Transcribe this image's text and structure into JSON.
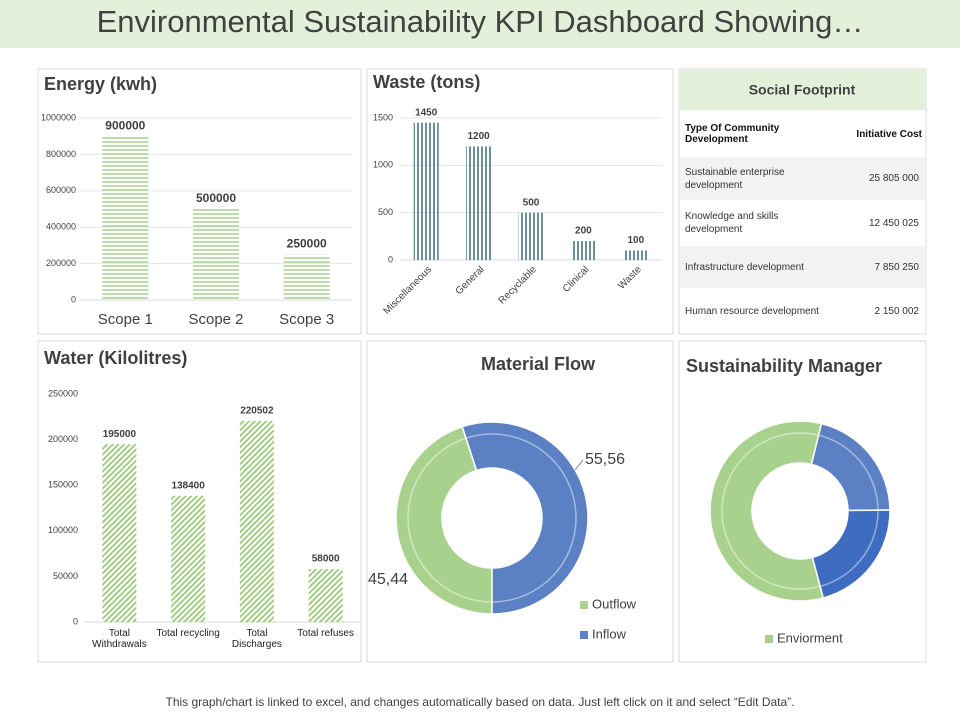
{
  "title": "Environmental Sustainability KPI Dashboard Showing…",
  "chart_data": [
    {
      "type": "bar",
      "title": "Energy (kwh)",
      "categories": [
        "Scope 1",
        "Scope 2",
        "Scope 3"
      ],
      "values": [
        900000,
        500000,
        250000
      ],
      "color": "#a9d18e",
      "pattern": "horizontal",
      "ylim": [
        0,
        1000000
      ],
      "yticks": [
        0,
        200000,
        400000,
        600000,
        800000,
        1000000
      ],
      "grid": true
    },
    {
      "type": "bar",
      "title": "Waste (tons)",
      "categories": [
        "Miscellaneous",
        "General",
        "Recyclable",
        "Clinical",
        "Waste"
      ],
      "values": [
        1450,
        1200,
        500,
        200,
        100
      ],
      "color": "#44747f",
      "pattern": "vertical",
      "ylim": [
        0,
        1600
      ],
      "yticks": [
        0,
        500,
        1000,
        1500
      ],
      "grid": true
    },
    {
      "type": "bar",
      "title": "Water (Kilolitres)",
      "categories": [
        "Total Withdrawals",
        "Total recycling",
        "Total Discharges",
        "Total refuses"
      ],
      "values": [
        195000,
        138400,
        220502,
        58000
      ],
      "color": "#8fc26a",
      "pattern": "diagonal",
      "ylim": [
        0,
        250000
      ],
      "yticks": [
        0,
        50000,
        100000,
        150000,
        200000,
        250000
      ],
      "grid": false
    },
    {
      "type": "donut",
      "title": "Material Flow",
      "categories": [
        "Outflow",
        "Inflow"
      ],
      "values": [
        45.44,
        55.56
      ],
      "value_labels": [
        "45,44",
        "55,56"
      ],
      "colors": [
        "#a9d18e",
        "#5b80c4"
      ]
    },
    {
      "type": "donut",
      "title": "Sustainability Manager",
      "categories": [
        "Enviorment",
        null,
        null
      ],
      "values": [
        58,
        21,
        21
      ],
      "colors": [
        "#a9d18e",
        "#5b80c4",
        "#3d6cc0"
      ]
    }
  ],
  "social_footprint": {
    "title": "Social Footprint",
    "columns": [
      "Type Of Community Development",
      "Initiative Cost"
    ],
    "rows": [
      [
        "Sustainable enterprise development",
        "25 805 000"
      ],
      [
        "Knowledge and skills development",
        "12 450 025"
      ],
      [
        "Infrastructure development",
        "7 850 250"
      ],
      [
        "Human resource development",
        "2 150 002"
      ]
    ]
  },
  "footer": "This graph/chart is linked to excel, and changes automatically based on data. Just left click on it and select “Edit Data”."
}
